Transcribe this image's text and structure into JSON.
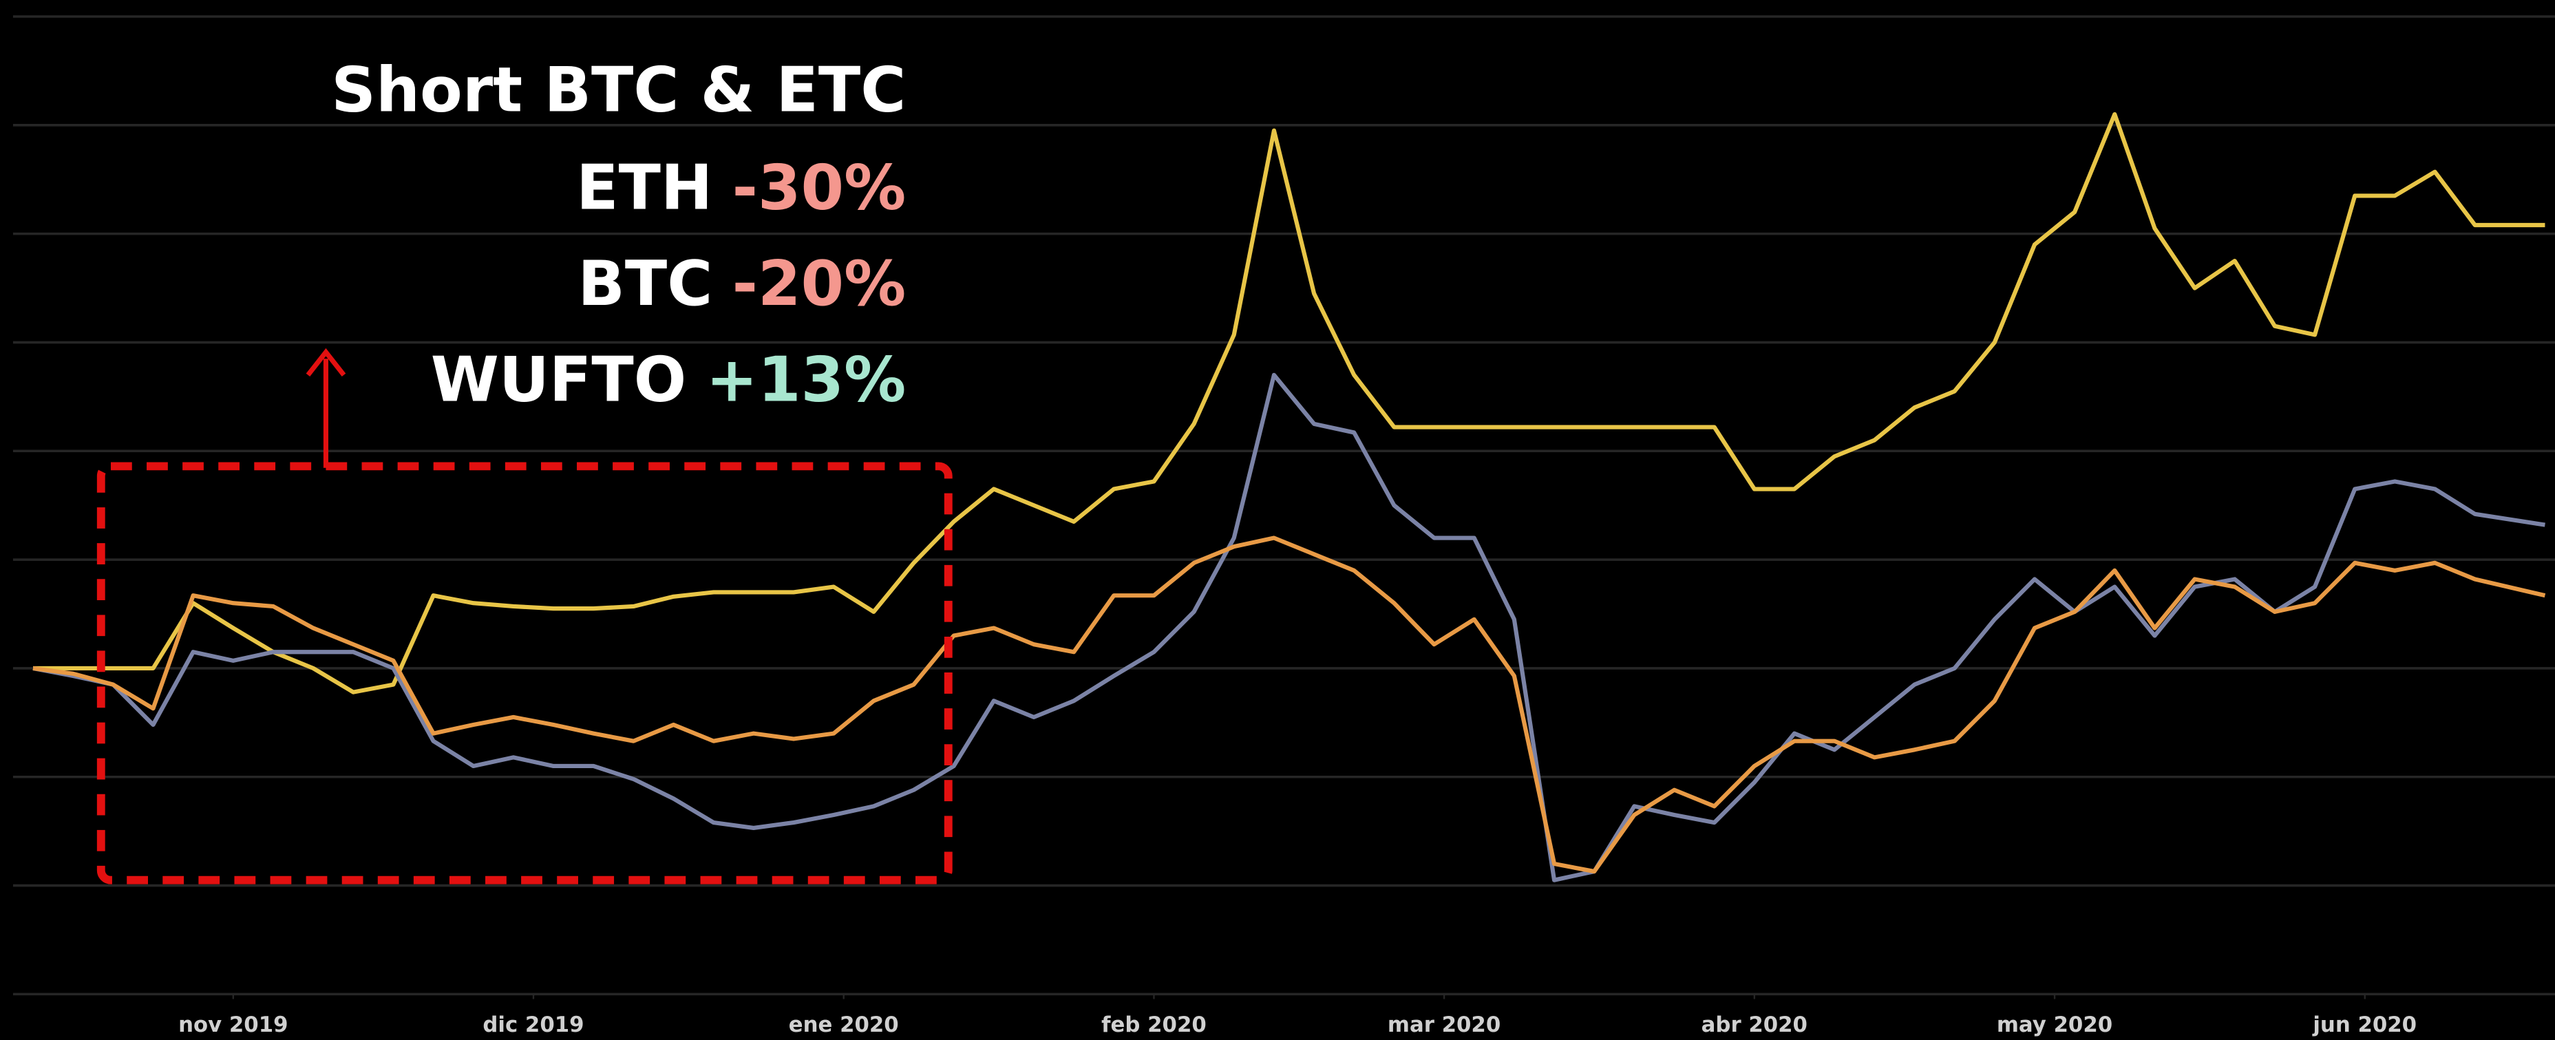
{
  "chart_data": {
    "type": "line",
    "x": [
      0,
      4,
      8,
      12,
      16,
      20,
      24,
      28,
      32,
      36,
      40,
      44,
      48,
      52,
      56,
      60,
      64,
      68,
      72,
      76,
      80,
      84,
      88,
      92,
      96,
      100,
      104,
      108,
      112,
      116,
      120,
      124,
      128,
      132,
      136,
      140,
      144,
      148,
      152,
      156,
      160,
      164,
      168,
      172,
      176,
      180,
      184,
      188,
      192,
      196,
      200,
      204,
      208,
      212,
      216,
      220,
      224,
      228,
      232,
      236,
      240,
      244,
      251
    ],
    "series": [
      {
        "color": "#e8c547",
        "values": [
          0,
          0,
          0,
          0,
          6,
          3.7,
          1.5,
          0,
          -2.2,
          -1.5,
          6.7,
          6,
          5.7,
          5.5,
          5.5,
          5.7,
          6.6,
          7,
          7,
          7,
          7.5,
          5.2,
          9.7,
          13.5,
          16.5,
          15,
          13.5,
          16.5,
          17.2,
          22.5,
          30.7,
          49.5,
          34.5,
          27,
          22.2,
          22.2,
          22.2,
          22.2,
          22.2,
          22.2,
          22.2,
          22.2,
          22.2,
          16.5,
          16.5,
          19.5,
          21,
          24,
          25.5,
          30,
          39,
          42,
          51,
          40.5,
          35,
          37.5,
          31.5,
          30.7,
          43.5,
          43.5,
          45.7,
          40.8,
          40.8
        ]
      },
      {
        "color": "#7b83a6",
        "values": [
          0,
          -0.7,
          -1.5,
          -5.2,
          1.5,
          0.7,
          1.5,
          1.5,
          1.5,
          0,
          -6.7,
          -9,
          -8.2,
          -9,
          -9,
          -10.2,
          -12,
          -14.2,
          -14.7,
          -14.2,
          -13.5,
          -12.7,
          -11.2,
          -9,
          -3,
          -4.5,
          -3,
          -0.7,
          1.5,
          5.2,
          12,
          27,
          22.5,
          21.7,
          15,
          12,
          12,
          4.5,
          -19.5,
          -18.7,
          -12.7,
          -13.5,
          -14.2,
          -10.5,
          -6,
          -7.5,
          -4.5,
          -1.5,
          0,
          4.5,
          8.2,
          5.2,
          7.5,
          3,
          7.5,
          8.2,
          5.2,
          7.5,
          16.5,
          17.2,
          16.5,
          14.2,
          13.2
        ]
      },
      {
        "color": "#e89a45",
        "values": [
          0,
          -0.5,
          -1.5,
          -3.7,
          6.7,
          6,
          5.7,
          3.7,
          2.2,
          0.7,
          -6,
          -5.2,
          -4.5,
          -5.2,
          -6,
          -6.7,
          -5.2,
          -6.7,
          -6,
          -6.5,
          -6,
          -3,
          -1.5,
          3,
          3.7,
          2.2,
          1.5,
          6.7,
          6.7,
          9.7,
          11.2,
          12,
          10.5,
          9,
          6,
          2.2,
          4.5,
          -0.7,
          -18,
          -18.7,
          -13.5,
          -11.2,
          -12.7,
          -9,
          -6.7,
          -6.7,
          -8.2,
          -7.5,
          -6.7,
          -3,
          3.7,
          5.2,
          9,
          3.7,
          8.2,
          7.5,
          5.2,
          6,
          9.7,
          9,
          9.7,
          8.2,
          6.7
        ]
      }
    ],
    "xlim": [
      -2,
      252
    ],
    "xticks": [
      {
        "value": 20,
        "label": "nov 2019"
      },
      {
        "value": 50,
        "label": "dic 2019"
      },
      {
        "value": 81,
        "label": "ene 2020"
      },
      {
        "value": 112,
        "label": "feb 2020"
      },
      {
        "value": 141,
        "label": "mar 2020"
      },
      {
        "value": 172,
        "label": "abr 2020"
      },
      {
        "value": 202,
        "label": "may 2020"
      },
      {
        "value": 233,
        "label": "jun 2020"
      }
    ],
    "ylim": [
      -30,
      60
    ],
    "yticks": [
      -30,
      -20,
      -10,
      0,
      10,
      20,
      30,
      40,
      50,
      60
    ],
    "grid": true,
    "annotation": {
      "title": "Short BTC & ETC",
      "lines": [
        {
          "name": "ETH",
          "change": "-30%",
          "color": "#f4978e"
        },
        {
          "name": "BTC",
          "change": "-20%",
          "color": "#f4978e"
        },
        {
          "name": "WUFTO",
          "change": "+13%",
          "color": "#a8e6cf"
        }
      ]
    }
  }
}
